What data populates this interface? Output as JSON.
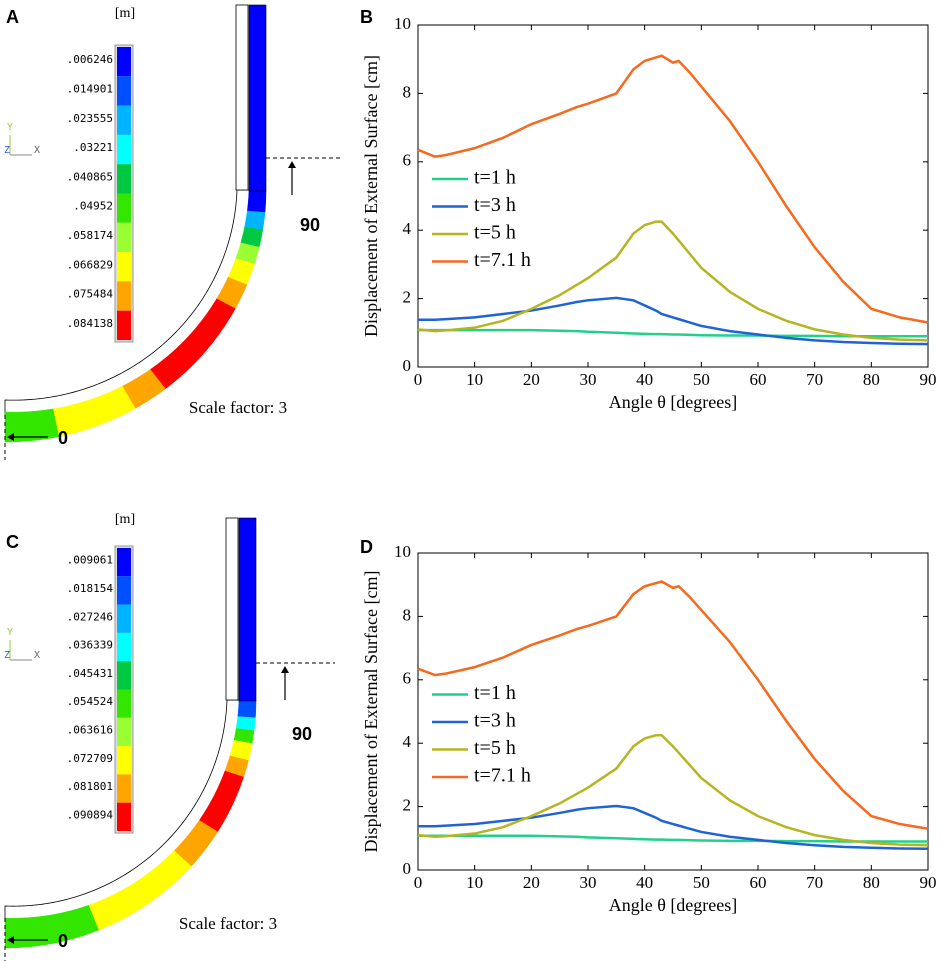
{
  "panel_labels": [
    "A",
    "B",
    "C",
    "D"
  ],
  "contour_plots": [
    {
      "unit": "[m]",
      "legend_values": [
        ".006246",
        ".014901",
        ".023555",
        ".03221",
        ".040865",
        ".04952",
        ".058174",
        ".066829",
        ".075484",
        ".084138"
      ],
      "colors": [
        "#0000ff",
        "#0050ff",
        "#00b4ff",
        "#00ffff",
        "#00c840",
        "#33e600",
        "#99ff33",
        "#ffff00",
        "#ffa500",
        "#ff0000"
      ],
      "axis_labels": [
        "Y",
        "Z",
        "X"
      ],
      "scale_factor": "Scale factor: 3",
      "start_angle_label": "0",
      "end_angle_label": "90"
    },
    {
      "unit": "[m]",
      "legend_values": [
        ".009061",
        ".018154",
        ".027246",
        ".036339",
        ".045431",
        ".054524",
        ".063616",
        ".072709",
        ".081801",
        ".090894"
      ],
      "colors": [
        "#0000ff",
        "#0050ff",
        "#00b4ff",
        "#00ffff",
        "#00c840",
        "#33e600",
        "#99ff33",
        "#ffff00",
        "#ffa500",
        "#ff0000"
      ],
      "axis_labels": [
        "Y",
        "Z",
        "X"
      ],
      "scale_factor": "Scale factor: 3",
      "start_angle_label": "0",
      "end_angle_label": "90"
    }
  ],
  "chart_data": [
    {
      "type": "line",
      "xlabel": "Angle θ [degrees]",
      "ylabel": "Displacement of External Surface [cm]",
      "x": [
        0,
        3,
        5,
        10,
        15,
        20,
        25,
        28,
        30,
        35,
        38,
        40,
        42,
        43,
        45,
        46,
        48,
        50,
        55,
        60,
        65,
        70,
        75,
        80,
        85,
        90
      ],
      "series": [
        {
          "name": "t=1 h",
          "color": "#22d08a",
          "values": [
            1.08,
            1.08,
            1.08,
            1.08,
            1.08,
            1.08,
            1.06,
            1.05,
            1.03,
            1.0,
            0.98,
            0.97,
            0.96,
            0.96,
            0.95,
            0.95,
            0.94,
            0.93,
            0.92,
            0.92,
            0.91,
            0.91,
            0.9,
            0.9,
            0.9,
            0.9
          ]
        },
        {
          "name": "t=3 h",
          "color": "#1f63d6",
          "values": [
            1.38,
            1.38,
            1.4,
            1.45,
            1.55,
            1.65,
            1.8,
            1.9,
            1.95,
            2.02,
            1.95,
            1.8,
            1.65,
            1.55,
            1.45,
            1.4,
            1.3,
            1.2,
            1.05,
            0.95,
            0.85,
            0.78,
            0.73,
            0.7,
            0.68,
            0.67
          ]
        },
        {
          "name": "t=5 h",
          "color": "#b5b521",
          "values": [
            1.1,
            1.05,
            1.07,
            1.15,
            1.35,
            1.7,
            2.1,
            2.4,
            2.6,
            3.2,
            3.9,
            4.15,
            4.25,
            4.25,
            3.9,
            3.7,
            3.3,
            2.9,
            2.2,
            1.7,
            1.35,
            1.1,
            0.95,
            0.85,
            0.8,
            0.78
          ]
        },
        {
          "name": "t=7.1 h",
          "color": "#f56a1f",
          "values": [
            6.35,
            6.15,
            6.2,
            6.4,
            6.7,
            7.1,
            7.4,
            7.6,
            7.7,
            8.0,
            8.7,
            8.95,
            9.05,
            9.1,
            8.9,
            8.95,
            8.6,
            8.2,
            7.2,
            6.0,
            4.7,
            3.5,
            2.5,
            1.7,
            1.45,
            1.3
          ]
        }
      ],
      "xlim": [
        0,
        90
      ],
      "xticks": [
        0,
        10,
        20,
        30,
        40,
        50,
        60,
        70,
        80,
        90
      ],
      "ylim": [
        0,
        10
      ],
      "yticks": [
        0,
        2,
        4,
        6,
        8,
        10
      ],
      "legend": "left"
    },
    {
      "type": "line",
      "xlabel": "Angle θ [degrees]",
      "ylabel": "Displacement of External Surface [cm]",
      "x": [
        0,
        3,
        5,
        10,
        15,
        20,
        25,
        28,
        30,
        35,
        38,
        40,
        42,
        43,
        45,
        46,
        48,
        50,
        55,
        60,
        65,
        70,
        75,
        80,
        85,
        90
      ],
      "series": [
        {
          "name": "t=1 h",
          "color": "#22d08a",
          "values": [
            1.08,
            1.08,
            1.08,
            1.08,
            1.08,
            1.08,
            1.06,
            1.05,
            1.03,
            1.0,
            0.98,
            0.97,
            0.96,
            0.96,
            0.95,
            0.95,
            0.94,
            0.93,
            0.92,
            0.92,
            0.91,
            0.91,
            0.9,
            0.9,
            0.9,
            0.9
          ]
        },
        {
          "name": "t=3 h",
          "color": "#1f63d6",
          "values": [
            1.38,
            1.38,
            1.4,
            1.45,
            1.55,
            1.65,
            1.8,
            1.9,
            1.95,
            2.02,
            1.95,
            1.8,
            1.65,
            1.55,
            1.45,
            1.4,
            1.3,
            1.2,
            1.05,
            0.95,
            0.85,
            0.78,
            0.73,
            0.7,
            0.68,
            0.67
          ]
        },
        {
          "name": "t=5 h",
          "color": "#b5b521",
          "values": [
            1.1,
            1.05,
            1.07,
            1.15,
            1.35,
            1.7,
            2.1,
            2.4,
            2.6,
            3.2,
            3.9,
            4.15,
            4.25,
            4.25,
            3.9,
            3.7,
            3.3,
            2.9,
            2.2,
            1.7,
            1.35,
            1.1,
            0.95,
            0.85,
            0.8,
            0.78
          ]
        },
        {
          "name": "t=7.1 h",
          "color": "#f56a1f",
          "values": [
            6.35,
            6.15,
            6.2,
            6.4,
            6.7,
            7.1,
            7.4,
            7.6,
            7.7,
            8.0,
            8.7,
            8.95,
            9.05,
            9.1,
            8.9,
            8.95,
            8.6,
            8.2,
            7.2,
            6.0,
            4.7,
            3.5,
            2.5,
            1.7,
            1.45,
            1.3
          ]
        }
      ],
      "xlim": [
        0,
        90
      ],
      "xticks": [
        0,
        10,
        20,
        30,
        40,
        50,
        60,
        70,
        80,
        90
      ],
      "ylim": [
        0,
        10
      ],
      "yticks": [
        0,
        2,
        4,
        6,
        8,
        10
      ],
      "legend": "left"
    }
  ]
}
